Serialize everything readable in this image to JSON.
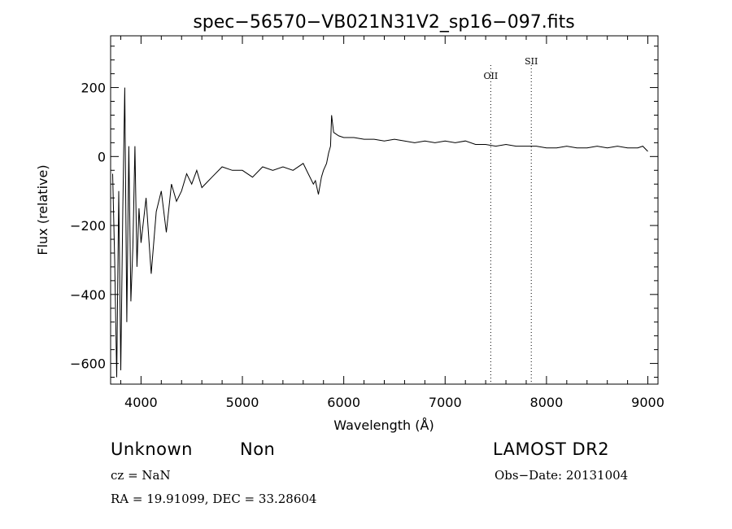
{
  "chart_data": {
    "type": "line",
    "title": "spec−56570−VB021N31V2_sp16−097.fits",
    "xlabel": "Wavelength (Å)",
    "ylabel": "Flux (relative)",
    "xlim": [
      3700,
      9100
    ],
    "ylim": [
      -660,
      350
    ],
    "x_ticks": [
      4000,
      5000,
      6000,
      7000,
      8000,
      9000
    ],
    "x_tick_labels": [
      "4000",
      "5000",
      "6000",
      "7000",
      "8000",
      "9000"
    ],
    "y_ticks": [
      -600,
      -400,
      -200,
      0,
      200
    ],
    "y_tick_labels": [
      "−600",
      "−400",
      "−200",
      "0",
      "200"
    ],
    "grid": false,
    "legend": "none",
    "line_color": "#000000",
    "series": [
      {
        "x": [
          3720,
          3740,
          3760,
          3780,
          3800,
          3820,
          3840,
          3860,
          3880,
          3900,
          3920,
          3940,
          3960,
          3980,
          4000,
          4050,
          4100,
          4150,
          4200,
          4250,
          4300,
          4350,
          4400,
          4450,
          4500,
          4550,
          4600,
          4700,
          4800,
          4900,
          5000,
          5100,
          5200,
          5300,
          5400,
          5500,
          5600,
          5650,
          5700,
          5720,
          5750,
          5780,
          5800,
          5830,
          5850,
          5870,
          5880,
          5900,
          5950,
          6000,
          6100,
          6200,
          6300,
          6400,
          6500,
          6600,
          6700,
          6800,
          6900,
          7000,
          7100,
          7200,
          7300,
          7400,
          7500,
          7600,
          7700,
          7800,
          7900,
          8000,
          8100,
          8200,
          8300,
          8400,
          8500,
          8600,
          8700,
          8800,
          8900,
          8950,
          9000
        ],
        "values": [
          -50,
          -300,
          -640,
          -100,
          -620,
          -150,
          200,
          -480,
          30,
          -420,
          -260,
          30,
          -320,
          -150,
          -250,
          -120,
          -340,
          -160,
          -100,
          -220,
          -80,
          -130,
          -100,
          -50,
          -80,
          -40,
          -90,
          -60,
          -30,
          -40,
          -40,
          -60,
          -30,
          -40,
          -30,
          -40,
          -20,
          -50,
          -80,
          -70,
          -110,
          -60,
          -40,
          -20,
          10,
          30,
          120,
          70,
          60,
          55,
          55,
          50,
          50,
          45,
          50,
          45,
          40,
          45,
          40,
          45,
          40,
          45,
          35,
          35,
          30,
          35,
          30,
          30,
          30,
          25,
          25,
          30,
          25,
          25,
          30,
          25,
          30,
          25,
          25,
          30,
          15
        ]
      }
    ],
    "annotations": [
      {
        "label": "OII",
        "x": 7450
      },
      {
        "label": "SII",
        "x": 7850
      }
    ]
  },
  "info": {
    "class": "Unknown",
    "subclass": "Non",
    "survey": "LAMOST DR2",
    "cz": "cz = NaN",
    "obs_date": "Obs−Date: 20131004",
    "coords": "RA =   19.91099, DEC =   33.28604"
  }
}
